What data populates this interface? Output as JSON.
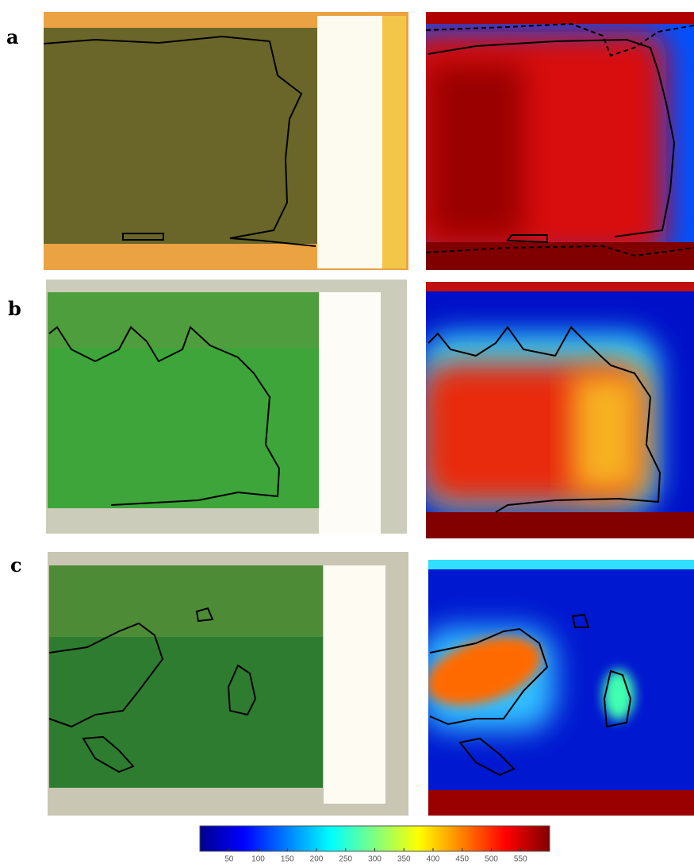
{
  "panels": [
    {
      "label": "a"
    },
    {
      "label": "b"
    },
    {
      "label": "c"
    }
  ],
  "colorbar": {
    "lim": [
      0,
      600
    ],
    "ticks": [
      50,
      100,
      150,
      200,
      250,
      300,
      350,
      400,
      450,
      500,
      550
    ],
    "colormap": "jet"
  }
}
